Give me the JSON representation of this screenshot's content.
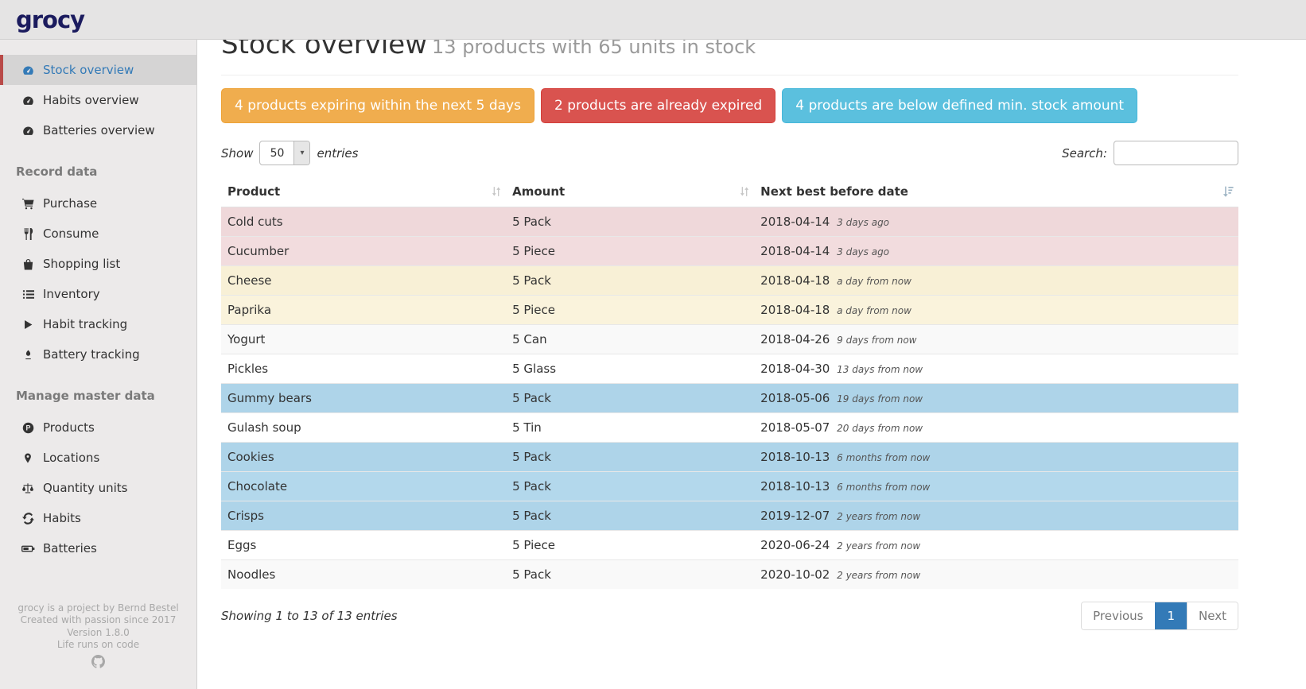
{
  "brand": {
    "logo_text": "grocy"
  },
  "sidebar": {
    "sections": [
      {
        "heading": "",
        "items": [
          {
            "label": "Stock overview",
            "icon": "tachometer-icon",
            "active": true
          },
          {
            "label": "Habits overview",
            "icon": "tachometer-icon",
            "active": false
          },
          {
            "label": "Batteries overview",
            "icon": "tachometer-icon",
            "active": false
          }
        ]
      },
      {
        "heading": "Record data",
        "items": [
          {
            "label": "Purchase",
            "icon": "shopping-cart-icon",
            "active": false
          },
          {
            "label": "Consume",
            "icon": "utensils-icon",
            "active": false
          },
          {
            "label": "Shopping list",
            "icon": "shopping-bag-icon",
            "active": false
          },
          {
            "label": "Inventory",
            "icon": "list-icon",
            "active": false
          },
          {
            "label": "Habit tracking",
            "icon": "play-icon",
            "active": false
          },
          {
            "label": "Battery tracking",
            "icon": "pen-icon",
            "active": false
          }
        ]
      },
      {
        "heading": "Manage master data",
        "items": [
          {
            "label": "Products",
            "icon": "product-icon",
            "active": false
          },
          {
            "label": "Locations",
            "icon": "map-marker-icon",
            "active": false
          },
          {
            "label": "Quantity units",
            "icon": "balance-scale-icon",
            "active": false
          },
          {
            "label": "Habits",
            "icon": "sync-icon",
            "active": false
          },
          {
            "label": "Batteries",
            "icon": "battery-icon",
            "active": false
          }
        ]
      }
    ],
    "footer_lines": [
      "grocy is a project by Bernd Bestel",
      "Created with passion since 2017",
      "Version 1.8.0",
      "Life runs on code"
    ],
    "footer_icon": "github-icon"
  },
  "header": {
    "title": "Stock overview",
    "subtitle": "13 products with 65 units in stock"
  },
  "alerts": [
    {
      "text": "4 products expiring within the next 5 days",
      "type": "warning",
      "color": "#f0ad4e"
    },
    {
      "text": "2 products are already expired",
      "type": "danger",
      "color": "#d9534f"
    },
    {
      "text": "4 products are below defined min. stock amount",
      "type": "info",
      "color": "#5bc0de"
    }
  ],
  "controls": {
    "show_label": "Show",
    "page_length": "50",
    "entries_label": "entries",
    "search_label": "Search:",
    "search_value": ""
  },
  "table": {
    "columns": [
      {
        "label": "Product",
        "sort": "both"
      },
      {
        "label": "Amount",
        "sort": "both"
      },
      {
        "label": "Next best before date",
        "sort": "amount-asc"
      }
    ],
    "rows": [
      {
        "product": "Cold cuts",
        "amount": "5 Pack",
        "date": "2018-04-14",
        "relative": "3 days ago",
        "status": "danger"
      },
      {
        "product": "Cucumber",
        "amount": "5 Piece",
        "date": "2018-04-14",
        "relative": "3 days ago",
        "status": "danger"
      },
      {
        "product": "Cheese",
        "amount": "5 Pack",
        "date": "2018-04-18",
        "relative": "a day from now",
        "status": "warning"
      },
      {
        "product": "Paprika",
        "amount": "5 Piece",
        "date": "2018-04-18",
        "relative": "a day from now",
        "status": "warning"
      },
      {
        "product": "Yogurt",
        "amount": "5 Can",
        "date": "2018-04-26",
        "relative": "9 days from now",
        "status": "plain"
      },
      {
        "product": "Pickles",
        "amount": "5 Glass",
        "date": "2018-04-30",
        "relative": "13 days from now",
        "status": "plain"
      },
      {
        "product": "Gummy bears",
        "amount": "5 Pack",
        "date": "2018-05-06",
        "relative": "19 days from now",
        "status": "info"
      },
      {
        "product": "Gulash soup",
        "amount": "5 Tin",
        "date": "2018-05-07",
        "relative": "20 days from now",
        "status": "plain"
      },
      {
        "product": "Cookies",
        "amount": "5 Pack",
        "date": "2018-10-13",
        "relative": "6 months from now",
        "status": "info"
      },
      {
        "product": "Chocolate",
        "amount": "5 Pack",
        "date": "2018-10-13",
        "relative": "6 months from now",
        "status": "info"
      },
      {
        "product": "Crisps",
        "amount": "5 Pack",
        "date": "2019-12-07",
        "relative": "2 years from now",
        "status": "info"
      },
      {
        "product": "Eggs",
        "amount": "5 Piece",
        "date": "2020-06-24",
        "relative": "2 years from now",
        "status": "plain"
      },
      {
        "product": "Noodles",
        "amount": "5 Pack",
        "date": "2020-10-02",
        "relative": "2 years from now",
        "status": "plain"
      }
    ]
  },
  "footer": {
    "info": "Showing 1 to 13 of 13 entries",
    "pagination": {
      "previous": "Previous",
      "page": "1",
      "next": "Next"
    }
  },
  "colors": {
    "brand_navy": "#1b1b5e",
    "link_blue": "#337ab7",
    "active_border_red": "#b94a48",
    "row_danger": "#f2dcde",
    "row_warning": "#faf3dc",
    "row_info": "#b3d8ec",
    "alert_warning": "#f0ad4e",
    "alert_danger": "#d9534f",
    "alert_info": "#5bc0de"
  }
}
